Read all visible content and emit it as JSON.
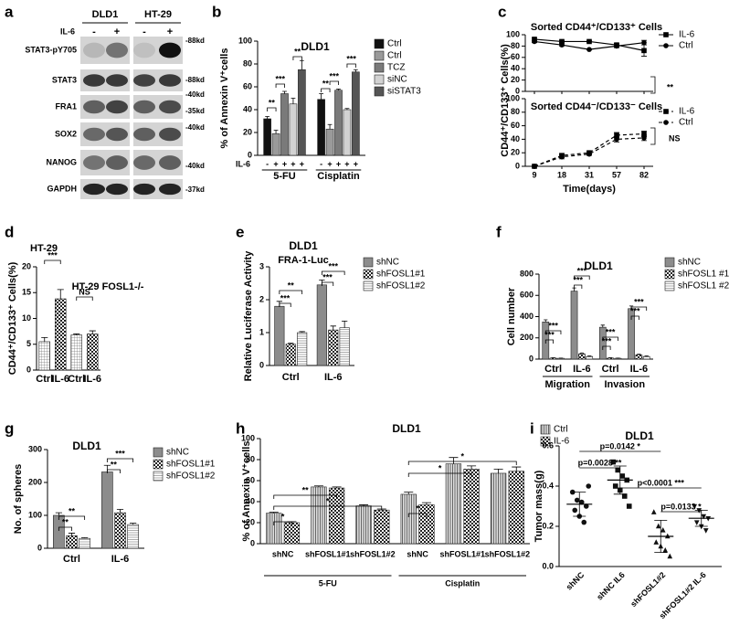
{
  "chart_data": [
    {
      "type": "blot",
      "panel": "a",
      "column_groups": [
        "DLD1",
        "HT-29"
      ],
      "treatment_label": "IL-6",
      "treatment": [
        "-",
        "+",
        "-",
        "+"
      ],
      "rows": [
        "STAT3-pY705",
        "STAT3",
        "FRA1",
        "SOX2",
        "NANOG",
        "GAPDH"
      ],
      "sizes": [
        "-88kd",
        "-88kd",
        "-40kd",
        "-35kd",
        "-40kd",
        "-40kd",
        "-37kd"
      ]
    },
    {
      "type": "bar",
      "panel": "b",
      "title": "DLD1",
      "ylabel": "% of Annexin V⁺cells",
      "categories": [
        "5-FU",
        "Cisplatin"
      ],
      "row_label": "IL-6",
      "row_marks": [
        "-",
        "+",
        "+",
        "+",
        "+"
      ],
      "ylim": [
        0,
        100
      ],
      "yticks": [
        0,
        20,
        40,
        60,
        80,
        100
      ],
      "series": [
        {
          "name": "Ctrl",
          "color": "#111111",
          "values": [
            32,
            49
          ],
          "errors": [
            2,
            5
          ]
        },
        {
          "name": "Ctrl",
          "color": "#9a9a9a",
          "values": [
            19,
            23
          ],
          "errors": [
            3,
            4
          ]
        },
        {
          "name": "TCZ",
          "color": "#7a7a7a",
          "values": [
            54,
            57
          ],
          "errors": [
            2,
            1
          ]
        },
        {
          "name": "siNC",
          "color": "#d2d2d2",
          "values": [
            45,
            40
          ],
          "errors": [
            5,
            1
          ]
        },
        {
          "name": "siSTAT3",
          "color": "#555555",
          "values": [
            75,
            73
          ],
          "errors": [
            8,
            2
          ]
        }
      ],
      "annotations": [
        "**",
        "***",
        "**",
        "**",
        "***",
        "***"
      ]
    },
    {
      "type": "line",
      "panel": "c",
      "ylabel": "CD44⁺/CD133⁺ Cells(%)",
      "xlabel": "Time(days)",
      "categories": [
        "9",
        "18",
        "31",
        "57",
        "82"
      ],
      "subplots": [
        {
          "title": "Sorted CD44⁺/CD133⁺ Cells",
          "ylim": [
            0,
            100
          ],
          "yticks": [
            0,
            20,
            40,
            60,
            80,
            100
          ],
          "line_style": "solid",
          "series": [
            {
              "name": "IL-6",
              "marker": "square",
              "color": "#000000",
              "values": [
                92,
                88,
                88,
                82,
                72
              ],
              "errors": [
                2,
                2,
                1,
                3,
                10
              ]
            },
            {
              "name": "Ctrl",
              "marker": "circle",
              "color": "#000000",
              "values": [
                88,
                82,
                74,
                80,
                86
              ],
              "errors": [
                2,
                2,
                1,
                3,
                4
              ]
            }
          ],
          "annotation": "**"
        },
        {
          "title": "Sorted CD44⁻/CD133⁻ Cells",
          "ylim": [
            0,
            100
          ],
          "yticks": [
            0,
            20,
            40,
            60,
            80,
            100
          ],
          "line_style": "dashed",
          "series": [
            {
              "name": "IL-6",
              "marker": "square",
              "color": "#000000",
              "values": [
                0,
                16,
                20,
                46,
                48
              ],
              "errors": [
                1,
                3,
                2,
                4,
                4
              ]
            },
            {
              "name": "Ctrl",
              "marker": "circle",
              "color": "#000000",
              "values": [
                0,
                14,
                18,
                40,
                42
              ],
              "errors": [
                1,
                3,
                2,
                4,
                4
              ]
            }
          ],
          "annotation": "NS"
        }
      ]
    },
    {
      "type": "bar",
      "panel": "d",
      "ylabel": "CD44⁺/CD133⁺ Cells(%)",
      "categories": [
        "Ctrl",
        "IL-6",
        "Ctrl",
        "IL-6"
      ],
      "values": [
        5.5,
        13.8,
        6.8,
        7
      ],
      "errors": [
        0.8,
        1.8,
        0.2,
        0.6
      ],
      "patterns": [
        "grid",
        "checker",
        "grid",
        "checker"
      ],
      "ylim": [
        0,
        20
      ],
      "yticks": [
        0,
        5,
        10,
        15,
        20
      ],
      "annotations": [
        "HT-29",
        "***",
        "HT-29 FOSL1-/-",
        "NS"
      ]
    },
    {
      "type": "bar",
      "panel": "e",
      "title": "DLD1",
      "subtitle": "FRA-1-Luc",
      "ylabel": "Relative Luciferase Activity",
      "categories": [
        "Ctrl",
        "IL-6"
      ],
      "ylim": [
        0,
        3
      ],
      "yticks": [
        0,
        1,
        2,
        3
      ],
      "series": [
        {
          "name": "shNC",
          "color": "#8c8c8c",
          "values": [
            1.8,
            2.45
          ],
          "errors": [
            0.15,
            0.15
          ]
        },
        {
          "name": "shFOSL1#1",
          "pattern": "checker",
          "values": [
            0.65,
            1.08
          ],
          "errors": [
            0.03,
            0.12
          ]
        },
        {
          "name": "shFOSL1#2",
          "pattern": "hlines",
          "values": [
            1.0,
            1.15
          ],
          "errors": [
            0.03,
            0.2
          ]
        }
      ],
      "annotations": [
        "**",
        "***",
        "***",
        "***"
      ]
    },
    {
      "type": "bar",
      "panel": "f",
      "title": "DLD1",
      "ylabel": "Cell number",
      "categories": [
        "Ctrl",
        "IL-6",
        "Ctrl",
        "IL-6"
      ],
      "groups": [
        "Migration",
        "Invasion"
      ],
      "ylim": [
        0,
        800
      ],
      "yticks": [
        0,
        200,
        400,
        600,
        800
      ],
      "series": [
        {
          "name": "shNC",
          "color": "#8c8c8c",
          "values": [
            350,
            640,
            300,
            475
          ],
          "errors": [
            20,
            30,
            20,
            25
          ]
        },
        {
          "name": "shFOSL1 #1",
          "pattern": "checker",
          "values": [
            10,
            50,
            10,
            40
          ],
          "errors": [
            3,
            8,
            3,
            6
          ]
        },
        {
          "name": "shFOSL1 #2",
          "pattern": "hlines",
          "values": [
            8,
            25,
            8,
            25
          ],
          "errors": [
            2,
            5,
            2,
            5
          ]
        }
      ],
      "annotations": [
        "***",
        "***",
        "***",
        "***",
        "***",
        "***",
        "***",
        "***"
      ]
    },
    {
      "type": "bar",
      "panel": "g",
      "title": "DLD1",
      "ylabel": "No. of spheres",
      "categories": [
        "Ctrl",
        "IL-6"
      ],
      "ylim": [
        0,
        300
      ],
      "yticks": [
        0,
        100,
        200,
        300
      ],
      "series": [
        {
          "name": "shNC",
          "color": "#8c8c8c",
          "values": [
            100,
            232
          ],
          "errors": [
            8,
            20
          ]
        },
        {
          "name": "shFOSL1#1",
          "pattern": "checker",
          "values": [
            38,
            108
          ],
          "errors": [
            8,
            10
          ]
        },
        {
          "name": "shFOSL1#2",
          "pattern": "hlines",
          "values": [
            30,
            72
          ],
          "errors": [
            2,
            4
          ]
        }
      ],
      "annotations": [
        "**",
        "**",
        "***",
        "**"
      ]
    },
    {
      "type": "bar",
      "panel": "h",
      "title": "DLD1",
      "ylabel": "% of Annexin V⁺cells",
      "categories": [
        "shNC",
        "shFOSL1#1",
        "shFOSL1#2",
        "shNC",
        "shFOSL1#1",
        "shFOSL1#2"
      ],
      "groups": [
        "5-FU",
        "Cisplatin"
      ],
      "ylim": [
        0,
        100
      ],
      "yticks": [
        0,
        20,
        40,
        60,
        80,
        100
      ],
      "series": [
        {
          "name": "Ctrl",
          "pattern": "vlines",
          "values": [
            29,
            54,
            36,
            47,
            76,
            67
          ],
          "errors": [
            1,
            1,
            1,
            2,
            6,
            4
          ]
        },
        {
          "name": "IL-6",
          "pattern": "checker",
          "values": [
            20,
            53,
            32,
            37,
            71,
            69
          ],
          "errors": [
            1,
            1,
            1,
            2,
            3,
            4
          ]
        }
      ],
      "annotations": [
        "*",
        "**",
        "*",
        "*",
        "*",
        "*"
      ]
    },
    {
      "type": "dot",
      "panel": "i",
      "title": "DLD1",
      "ylabel": "Tumor mass(g)",
      "categories": [
        "shNC",
        "shNC IL6",
        "shFOSL1#2",
        "shFOSL1#2 IL-6"
      ],
      "markers": [
        "circle",
        "square",
        "triangle",
        "triangle-down"
      ],
      "points": [
        [
          0.37,
          0.33,
          0.32,
          0.3,
          0.28,
          0.25,
          0.22,
          0.4
        ],
        [
          0.52,
          0.48,
          0.45,
          0.43,
          0.4,
          0.38,
          0.35,
          0.3
        ],
        [
          0.27,
          0.2,
          0.18,
          0.15,
          0.12,
          0.1,
          0.08,
          0.05
        ],
        [
          0.3,
          0.28,
          0.25,
          0.24,
          0.22,
          0.2,
          0.18
        ]
      ],
      "means": [
        0.31,
        0.43,
        0.15,
        0.24
      ],
      "sds": [
        0.06,
        0.07,
        0.08,
        0.04
      ],
      "ylim": [
        0,
        0.6
      ],
      "yticks": [
        {
          "value": 0,
          "label": "0.0"
        },
        0.2,
        0.4,
        0.6
      ],
      "annotations": [
        "p=0.0142 *",
        "p=0.0028 **",
        "p<0.0001 ***",
        "p=0.0133 *"
      ]
    }
  ]
}
